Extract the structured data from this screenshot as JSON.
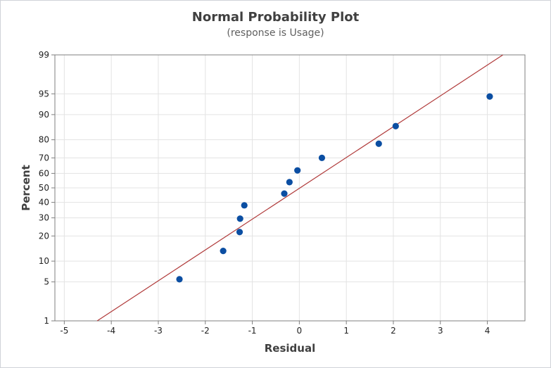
{
  "chart_data": {
    "type": "scatter",
    "title": "Normal Probability Plot",
    "subtitle": "(response is Usage)",
    "xlabel": "Residual",
    "ylabel": "Percent",
    "xlim": [
      -5.2,
      4.8
    ],
    "ylim": [
      1,
      99
    ],
    "y_scale": "normal-probability",
    "x_ticks": [
      -5,
      -4,
      -3,
      -2,
      -1,
      0,
      1,
      2,
      3,
      4
    ],
    "y_ticks": [
      1,
      5,
      10,
      20,
      30,
      40,
      50,
      60,
      70,
      80,
      90,
      95,
      99
    ],
    "grid": true,
    "fit_line": {
      "x": [
        -4.3,
        4.33
      ],
      "y": [
        1,
        99
      ]
    },
    "series": [
      {
        "x": [
          -2.55,
          -1.62,
          -1.27,
          -1.26,
          -1.17,
          -0.32,
          -0.21,
          -0.04,
          0.48,
          1.69,
          2.05,
          4.05
        ],
        "y": [
          5.5,
          13.5,
          22,
          29.5,
          38,
          46,
          54,
          62,
          70,
          78,
          86,
          94.5
        ]
      }
    ],
    "colors": {
      "points": "#0b4ea2",
      "fit_line": "#b03a3a",
      "grid": "#e3e3e3",
      "axis": "#7f7f7f"
    }
  }
}
